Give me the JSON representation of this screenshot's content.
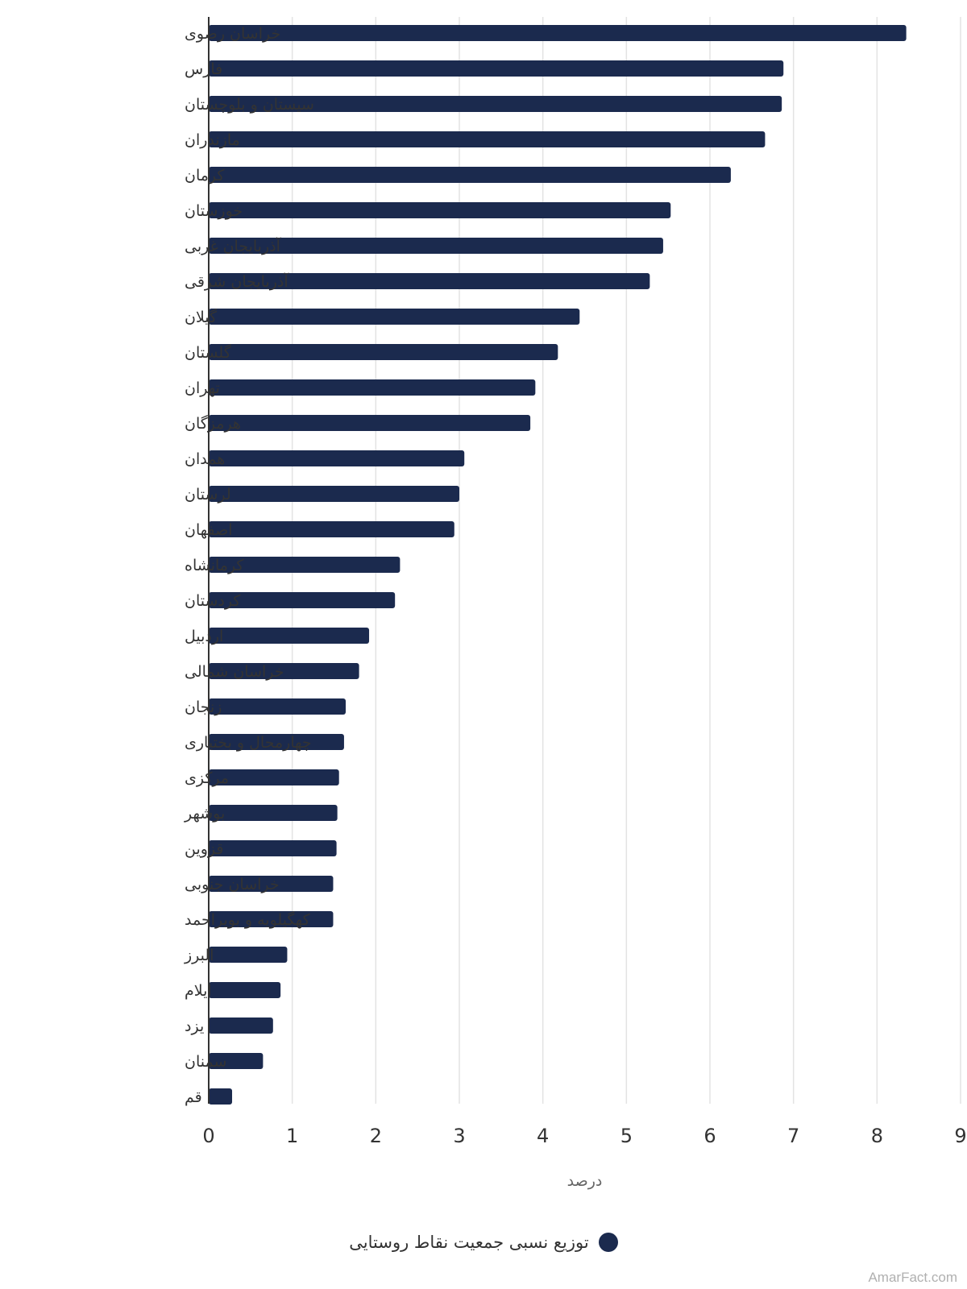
{
  "chart_data": {
    "type": "bar",
    "orientation": "horizontal",
    "categories": [
      "خراسان رضوی",
      "فارس",
      "سیستان و بلوچستان",
      "مازندران",
      "کرمان",
      "خوزستان",
      "آذربایجان غربی",
      "آذربایجان شرقی",
      "گیلان",
      "گلستان",
      "تهران",
      "هرمزگان",
      "همدان",
      "لرستان",
      "اصفهان",
      "کرمانشاه",
      "کردستان",
      "اردبیل",
      "خراسان شمالی",
      "زنجان",
      "چهارمحال و بختیاری",
      "مرکزی",
      "بوشهر",
      "قزوین",
      "خراسان جنوبی",
      "کهگیلویه و بویراحمد",
      "البرز",
      "ایلام",
      "یزد",
      "سمنان",
      "قم"
    ],
    "series": [
      {
        "name": "توزیع نسبی جمعیت نقاط روستایی",
        "color": "#1b2a4e",
        "values": [
          8.35,
          6.88,
          6.86,
          6.66,
          6.25,
          5.53,
          5.44,
          5.28,
          4.44,
          4.18,
          3.91,
          3.85,
          3.06,
          3.0,
          2.94,
          2.29,
          2.23,
          1.92,
          1.8,
          1.64,
          1.62,
          1.56,
          1.54,
          1.53,
          1.49,
          1.49,
          0.94,
          0.86,
          0.77,
          0.65,
          0.28
        ]
      }
    ],
    "xlabel": "درصد",
    "xlim": [
      0,
      9
    ],
    "xticks": [
      "0",
      "1",
      "2",
      "3",
      "4",
      "5",
      "6",
      "7",
      "8",
      "9"
    ],
    "grid": "vertical",
    "legend": "bottom-center"
  },
  "credit": "AmarFact.com"
}
